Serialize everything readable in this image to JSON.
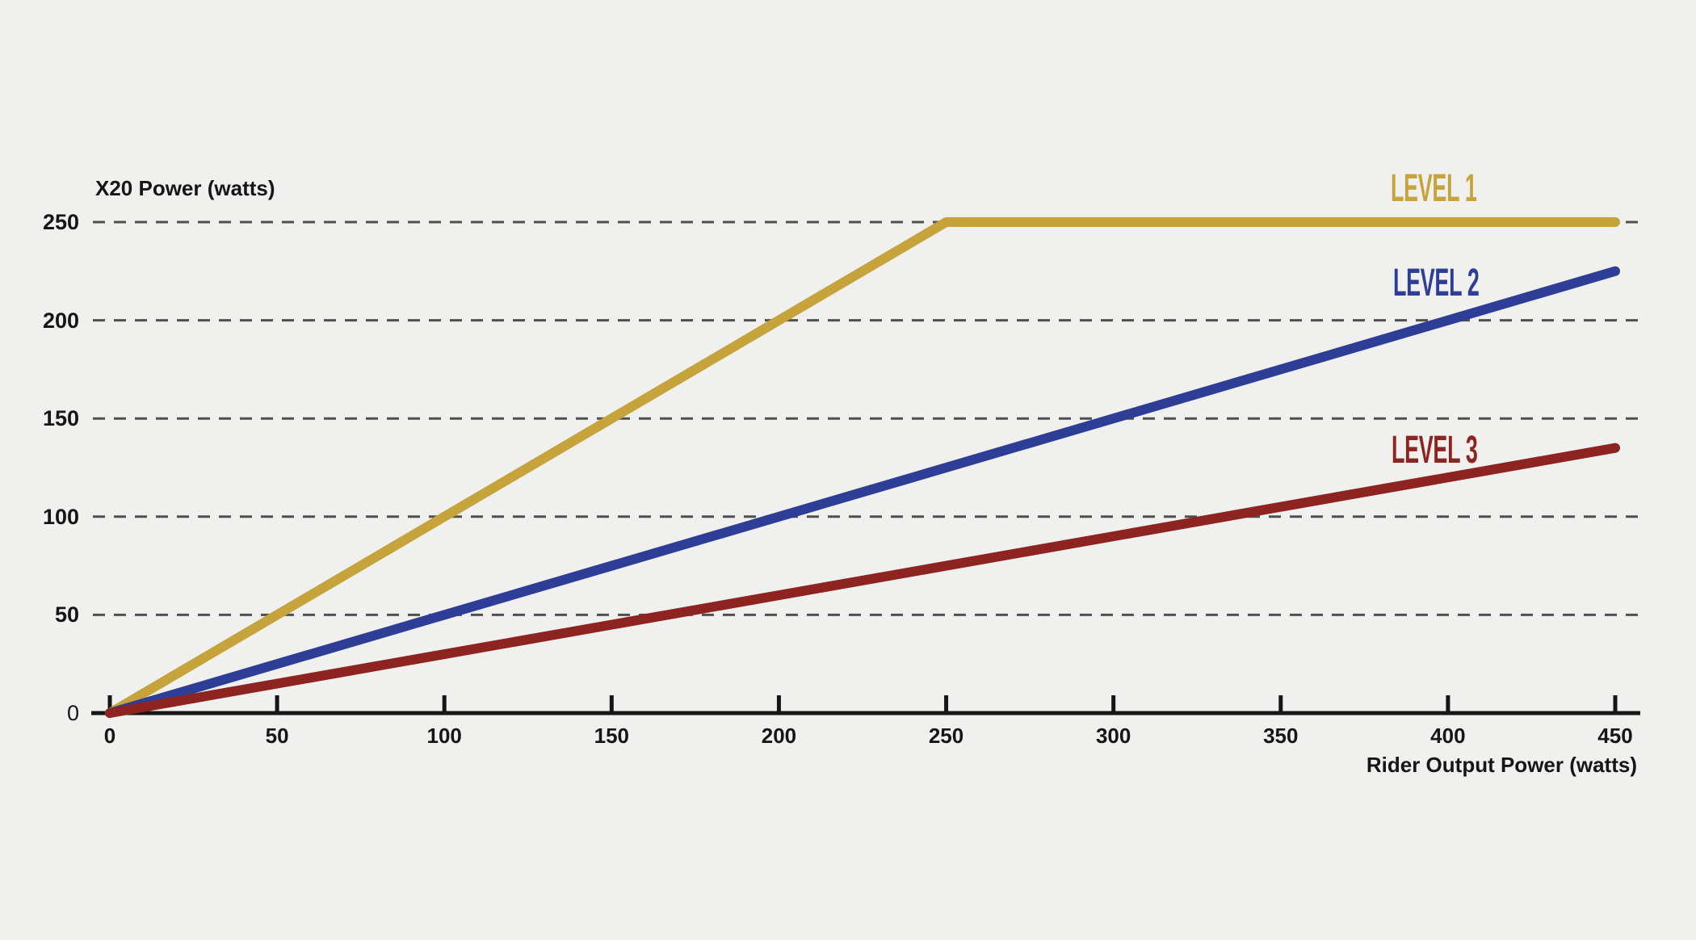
{
  "background": "#F0F1EF",
  "axis": {
    "color": "#161616",
    "grid_color": "#4F4F4F",
    "text_color": "#161616"
  },
  "chart_data": {
    "type": "line",
    "title": "",
    "xlabel": "Rider Output Power (watts)",
    "ylabel": "X20 Power (watts)",
    "xlim": [
      0,
      450
    ],
    "ylim": [
      0,
      250
    ],
    "x_ticks": [
      0,
      50,
      100,
      150,
      200,
      250,
      300,
      350,
      400,
      450
    ],
    "y_ticks": [
      0,
      50,
      100,
      150,
      200,
      250
    ],
    "grid": "horizontal-dashed",
    "legend_position": "inline-right-of-plot",
    "series": [
      {
        "name": "LEVEL 1",
        "color": "#C7A33C",
        "points": [
          [
            0,
            0
          ],
          [
            250,
            250
          ],
          [
            450,
            250
          ]
        ]
      },
      {
        "name": "LEVEL 2",
        "color": "#2E3E97",
        "points": [
          [
            0,
            0
          ],
          [
            450,
            225
          ]
        ]
      },
      {
        "name": "LEVEL 3",
        "color": "#8E2421",
        "points": [
          [
            0,
            0
          ],
          [
            450,
            135
          ]
        ]
      }
    ]
  }
}
